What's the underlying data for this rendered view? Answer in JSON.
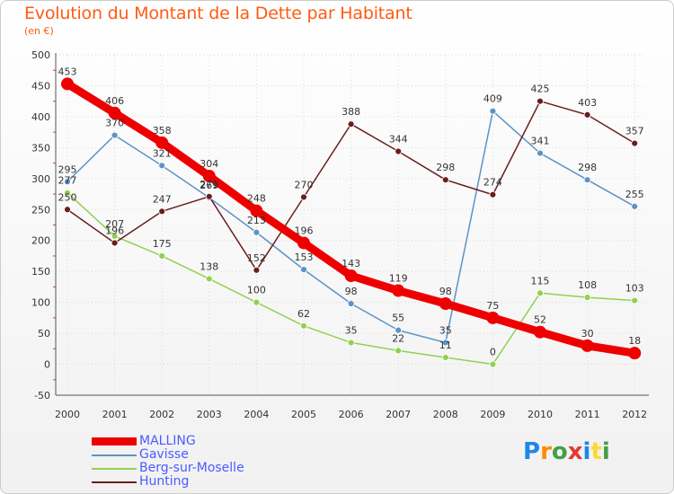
{
  "header": {
    "title": "Evolution du Montant de la Dette par Habitant",
    "subtitle": "(en €)"
  },
  "brand": {
    "letters": [
      "P",
      "r",
      "o",
      "x",
      "i",
      "t",
      "i"
    ],
    "colors": [
      "#1e88e5",
      "#fb8c00",
      "#43a047",
      "#e53935",
      "#1e88e5",
      "#fdd835",
      "#43a047"
    ]
  },
  "chart_data": {
    "type": "line",
    "x": [
      "2000",
      "2001",
      "2002",
      "2003",
      "2004",
      "2005",
      "2006",
      "2007",
      "2008",
      "2009",
      "2010",
      "2011",
      "2012"
    ],
    "ylim": [
      -50,
      500
    ],
    "yticks": [
      -50,
      0,
      50,
      100,
      150,
      200,
      250,
      300,
      350,
      400,
      450,
      500
    ],
    "grid": true,
    "legend_position": "bottom-left",
    "series": [
      {
        "name": "MALLING",
        "color": "#ee0000",
        "values": [
          453,
          406,
          358,
          304,
          248,
          196,
          143,
          119,
          98,
          75,
          52,
          30,
          18
        ],
        "emphasis": true
      },
      {
        "name": "Gavisse",
        "color": "#5b93c7",
        "values": [
          295,
          370,
          321,
          269,
          213,
          153,
          98,
          55,
          35,
          409,
          341,
          298,
          255
        ]
      },
      {
        "name": "Berg-sur-Moselle",
        "color": "#92d050",
        "values": [
          277,
          207,
          175,
          138,
          100,
          62,
          35,
          22,
          11,
          0,
          115,
          108,
          103
        ]
      },
      {
        "name": "Hunting",
        "color": "#6b1d1d",
        "values": [
          250,
          196,
          247,
          271,
          152,
          270,
          388,
          344,
          298,
          274,
          425,
          403,
          357
        ]
      }
    ]
  }
}
